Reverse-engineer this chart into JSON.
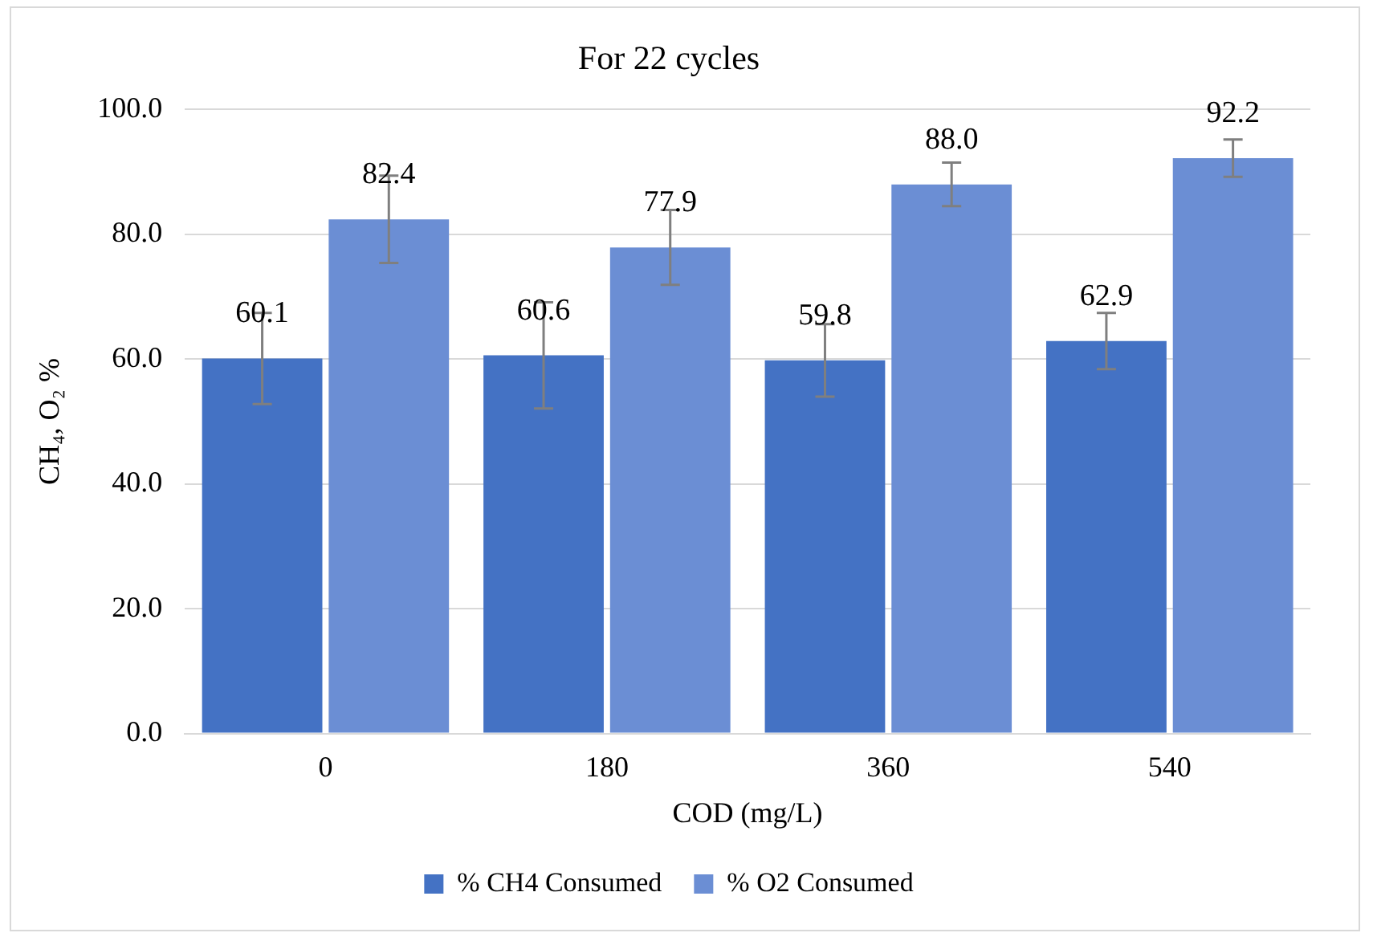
{
  "chart_data": {
    "type": "bar",
    "title": "For 22 cycles",
    "xlabel": "COD (mg/L)",
    "ylabel": "CH₄, O₂ %",
    "categories": [
      "0",
      "180",
      "360",
      "540"
    ],
    "series": [
      {
        "name": "% CH4 Consumed",
        "color": "#4472c4",
        "values": [
          60.1,
          60.6,
          59.8,
          62.9
        ],
        "value_labels": [
          "60.1",
          "60.6",
          "59.8",
          "62.9"
        ],
        "errors": [
          7.3,
          8.5,
          5.8,
          4.5
        ]
      },
      {
        "name": "% O2 Consumed",
        "color": "#6b8ed4",
        "values": [
          82.4,
          77.9,
          88.0,
          92.2
        ],
        "value_labels": [
          "82.4",
          "77.9",
          "88.0",
          "92.2"
        ],
        "errors": [
          7,
          6,
          3.5,
          3
        ]
      }
    ],
    "ylim": [
      0,
      100
    ],
    "yticks": [
      {
        "value": 0,
        "label": "0.0"
      },
      {
        "value": 20,
        "label": "20.0"
      },
      {
        "value": 40,
        "label": "40.0"
      },
      {
        "value": 60,
        "label": "60.0"
      },
      {
        "value": 80,
        "label": "80.0"
      },
      {
        "value": 100,
        "label": "100.0"
      }
    ],
    "grid": "y",
    "legend": "bottom"
  }
}
